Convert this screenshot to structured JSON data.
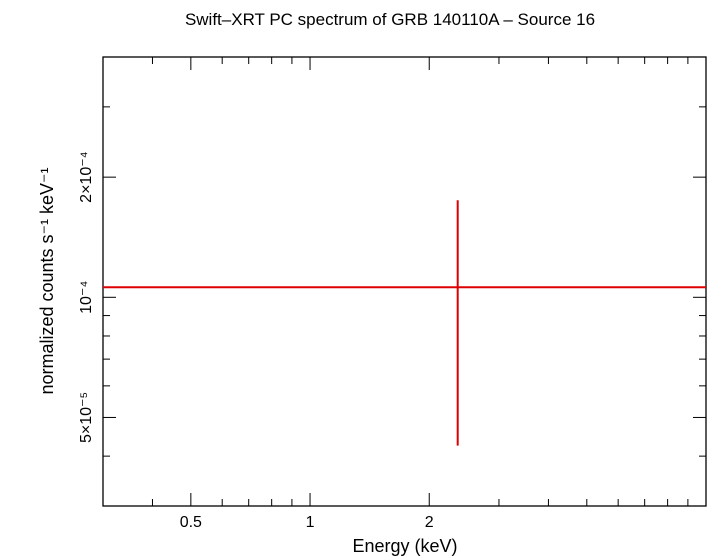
{
  "chart_data": {
    "type": "scatter",
    "title": "Swift–XRT PC spectrum of GRB 140110A – Source 16",
    "xlabel": "Energy (keV)",
    "ylabel": "normalized counts s⁻¹ keV⁻¹",
    "x_scale": "log",
    "y_scale": "log",
    "xlim": [
      0.3,
      10
    ],
    "ylim": [
      3e-05,
      0.0004
    ],
    "x_ticks": [
      {
        "value": 0.5,
        "label": "0.5"
      },
      {
        "value": 1,
        "label": "1"
      },
      {
        "value": 2,
        "label": "2"
      }
    ],
    "y_ticks": [
      {
        "value": 5e-05,
        "label": "5×10⁻⁵"
      },
      {
        "value": 0.0001,
        "label": "10⁻⁴"
      },
      {
        "value": 0.0002,
        "label": "2×10⁻⁴"
      }
    ],
    "series": [
      {
        "color": "#dd0000",
        "points": [
          {
            "x": 2.36,
            "x_low": 0.3,
            "x_high": 10,
            "y": 0.000106,
            "y_low": 4.25e-05,
            "y_high": 0.000175
          }
        ]
      }
    ],
    "grid": false,
    "legend": "none"
  }
}
